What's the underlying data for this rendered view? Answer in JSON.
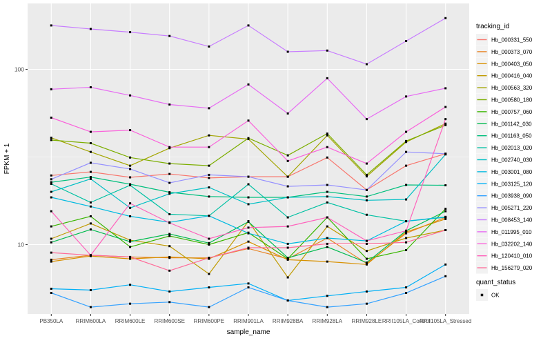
{
  "chart_data": {
    "type": "line",
    "title": "",
    "xlabel": "sample_name",
    "ylabel": "FPKM + 1",
    "x_categories": [
      "PB350LA",
      "RRIM600LA",
      "RRIM600LE",
      "RRIM600SE",
      "RRIM600PE",
      "RRIM901LA",
      "RRIM928BA",
      "RRIM928LA",
      "RRIM928LE",
      "RRII105LA_Control",
      "RRII105LA_Stressed"
    ],
    "yaxis": {
      "scale": "log10",
      "tick_values": [
        10,
        100
      ],
      "tick_labels": [
        "10",
        "100"
      ],
      "minor_tick_values": [
        31.62
      ],
      "approx_range": [
        4,
        230
      ]
    },
    "grid": "on",
    "marker": "black-square",
    "series": [
      {
        "name": "Hb_000331_550",
        "color": "#F8766D",
        "values": [
          24.8,
          26.0,
          24.2,
          25.3,
          24.0,
          24.4,
          24.4,
          31.4,
          20.5,
          28.2,
          33.0
        ]
      },
      {
        "name": "Hb_000373_070",
        "color": "#E88526",
        "values": [
          8.2,
          8.7,
          8.5,
          8.4,
          8.4,
          9.5,
          8.3,
          10.9,
          7.8,
          11.6,
          14.3
        ]
      },
      {
        "name": "Hb_000403_050",
        "color": "#D89000",
        "values": [
          8.0,
          8.6,
          8.3,
          8.5,
          8.3,
          10.4,
          8.2,
          8.0,
          7.7,
          11.8,
          14.0
        ]
      },
      {
        "name": "Hb_000416_040",
        "color": "#C09B00",
        "values": [
          10.8,
          13.2,
          10.6,
          9.8,
          6.8,
          13.6,
          6.5,
          12.7,
          9.2,
          10.9,
          12.1
        ]
      },
      {
        "name": "Hb_000563_320",
        "color": "#A3A500",
        "values": [
          40.7,
          33.8,
          28.2,
          35.5,
          42.0,
          40.0,
          24.4,
          42.0,
          24.5,
          38.5,
          49.0
        ]
      },
      {
        "name": "Hb_000580_180",
        "color": "#7CAE00",
        "values": [
          39.5,
          37.9,
          31.4,
          29.0,
          28.2,
          40.5,
          32.3,
          43.0,
          25.0,
          39.0,
          48.0
        ]
      },
      {
        "name": "Hb_000757_060",
        "color": "#39B600",
        "values": [
          12.7,
          14.5,
          9.7,
          11.2,
          10.0,
          11.7,
          8.3,
          14.3,
          8.3,
          9.3,
          16.0
        ]
      },
      {
        "name": "Hb_001142_030",
        "color": "#00BB4E",
        "values": [
          10.3,
          12.2,
          10.4,
          11.5,
          10.2,
          13.5,
          8.4,
          9.7,
          7.9,
          12.0,
          15.5
        ]
      },
      {
        "name": "Hb_001163_050",
        "color": "#00BF7D",
        "values": [
          22.7,
          24.3,
          22.1,
          19.9,
          18.8,
          18.6,
          18.6,
          20.0,
          18.8,
          21.9,
          21.8
        ]
      },
      {
        "name": "Hb_002013_020",
        "color": "#00C1A3",
        "values": [
          22.2,
          17.4,
          21.8,
          14.9,
          14.6,
          22.1,
          14.3,
          17.4,
          14.8,
          13.6,
          14.3
        ]
      },
      {
        "name": "Hb_002740_030",
        "color": "#00BFC4",
        "values": [
          20.0,
          23.7,
          16.2,
          19.5,
          21.2,
          17.0,
          18.6,
          18.8,
          17.9,
          18.1,
          32.7
        ]
      },
      {
        "name": "Hb_003001_080",
        "color": "#00BAE0",
        "values": [
          18.6,
          16.5,
          14.5,
          13.4,
          14.6,
          11.6,
          10.1,
          10.9,
          10.5,
          13.6,
          14.4
        ]
      },
      {
        "name": "Hb_003125_120",
        "color": "#00B0F6",
        "values": [
          5.6,
          5.5,
          5.9,
          5.4,
          5.7,
          6.0,
          4.8,
          5.1,
          5.4,
          5.7,
          7.7
        ]
      },
      {
        "name": "Hb_003938_090",
        "color": "#35A2FF",
        "values": [
          5.3,
          4.4,
          4.6,
          4.7,
          4.4,
          5.7,
          4.8,
          4.4,
          4.6,
          5.3,
          6.6
        ]
      },
      {
        "name": "Hb_005271_220",
        "color": "#9590FF",
        "values": [
          23.6,
          29.3,
          27.0,
          22.5,
          25.0,
          24.4,
          21.5,
          21.9,
          20.5,
          33.8,
          33.0
        ]
      },
      {
        "name": "Hb_008453_140",
        "color": "#C77CFF",
        "values": [
          178,
          170,
          163,
          155,
          135,
          178,
          126,
          128,
          107,
          145,
          196
        ]
      },
      {
        "name": "Hb_011995_010",
        "color": "#E76BF3",
        "values": [
          77,
          79,
          71,
          63,
          60,
          82,
          56,
          89,
          52,
          70,
          78
        ]
      },
      {
        "name": "Hb_032202_140",
        "color": "#FA62DB",
        "values": [
          53,
          44,
          45,
          36,
          36,
          51,
          30,
          36,
          29,
          44,
          61
        ]
      },
      {
        "name": "Hb_120410_010",
        "color": "#FF62BC",
        "values": [
          15.5,
          8.7,
          17.2,
          13.3,
          10.8,
          12.5,
          12.7,
          14.3,
          10.5,
          12.0,
          52
        ]
      },
      {
        "name": "Hb_156279_020",
        "color": "#FF6A98",
        "values": [
          9.0,
          8.7,
          8.5,
          7.1,
          8.4,
          9.6,
          9.6,
          10.1,
          10.1,
          10.3,
          12.1
        ]
      }
    ],
    "legend": {
      "title": "tracking_id",
      "position": "right",
      "secondary_title": "quant_status",
      "secondary_items": [
        {
          "label": "OK",
          "marker": "black-square"
        }
      ]
    },
    "style": {
      "panel_bg": "#EBEBEB",
      "grid_color": "#FFFFFF",
      "axis_text_color": "#4D4D4D",
      "axis_title_color": "#000000",
      "tick_mark_color": "#333333",
      "point_color": "#000000",
      "legend_key_bg": "#F2F2F2",
      "legend_text_color": "#000000"
    }
  }
}
